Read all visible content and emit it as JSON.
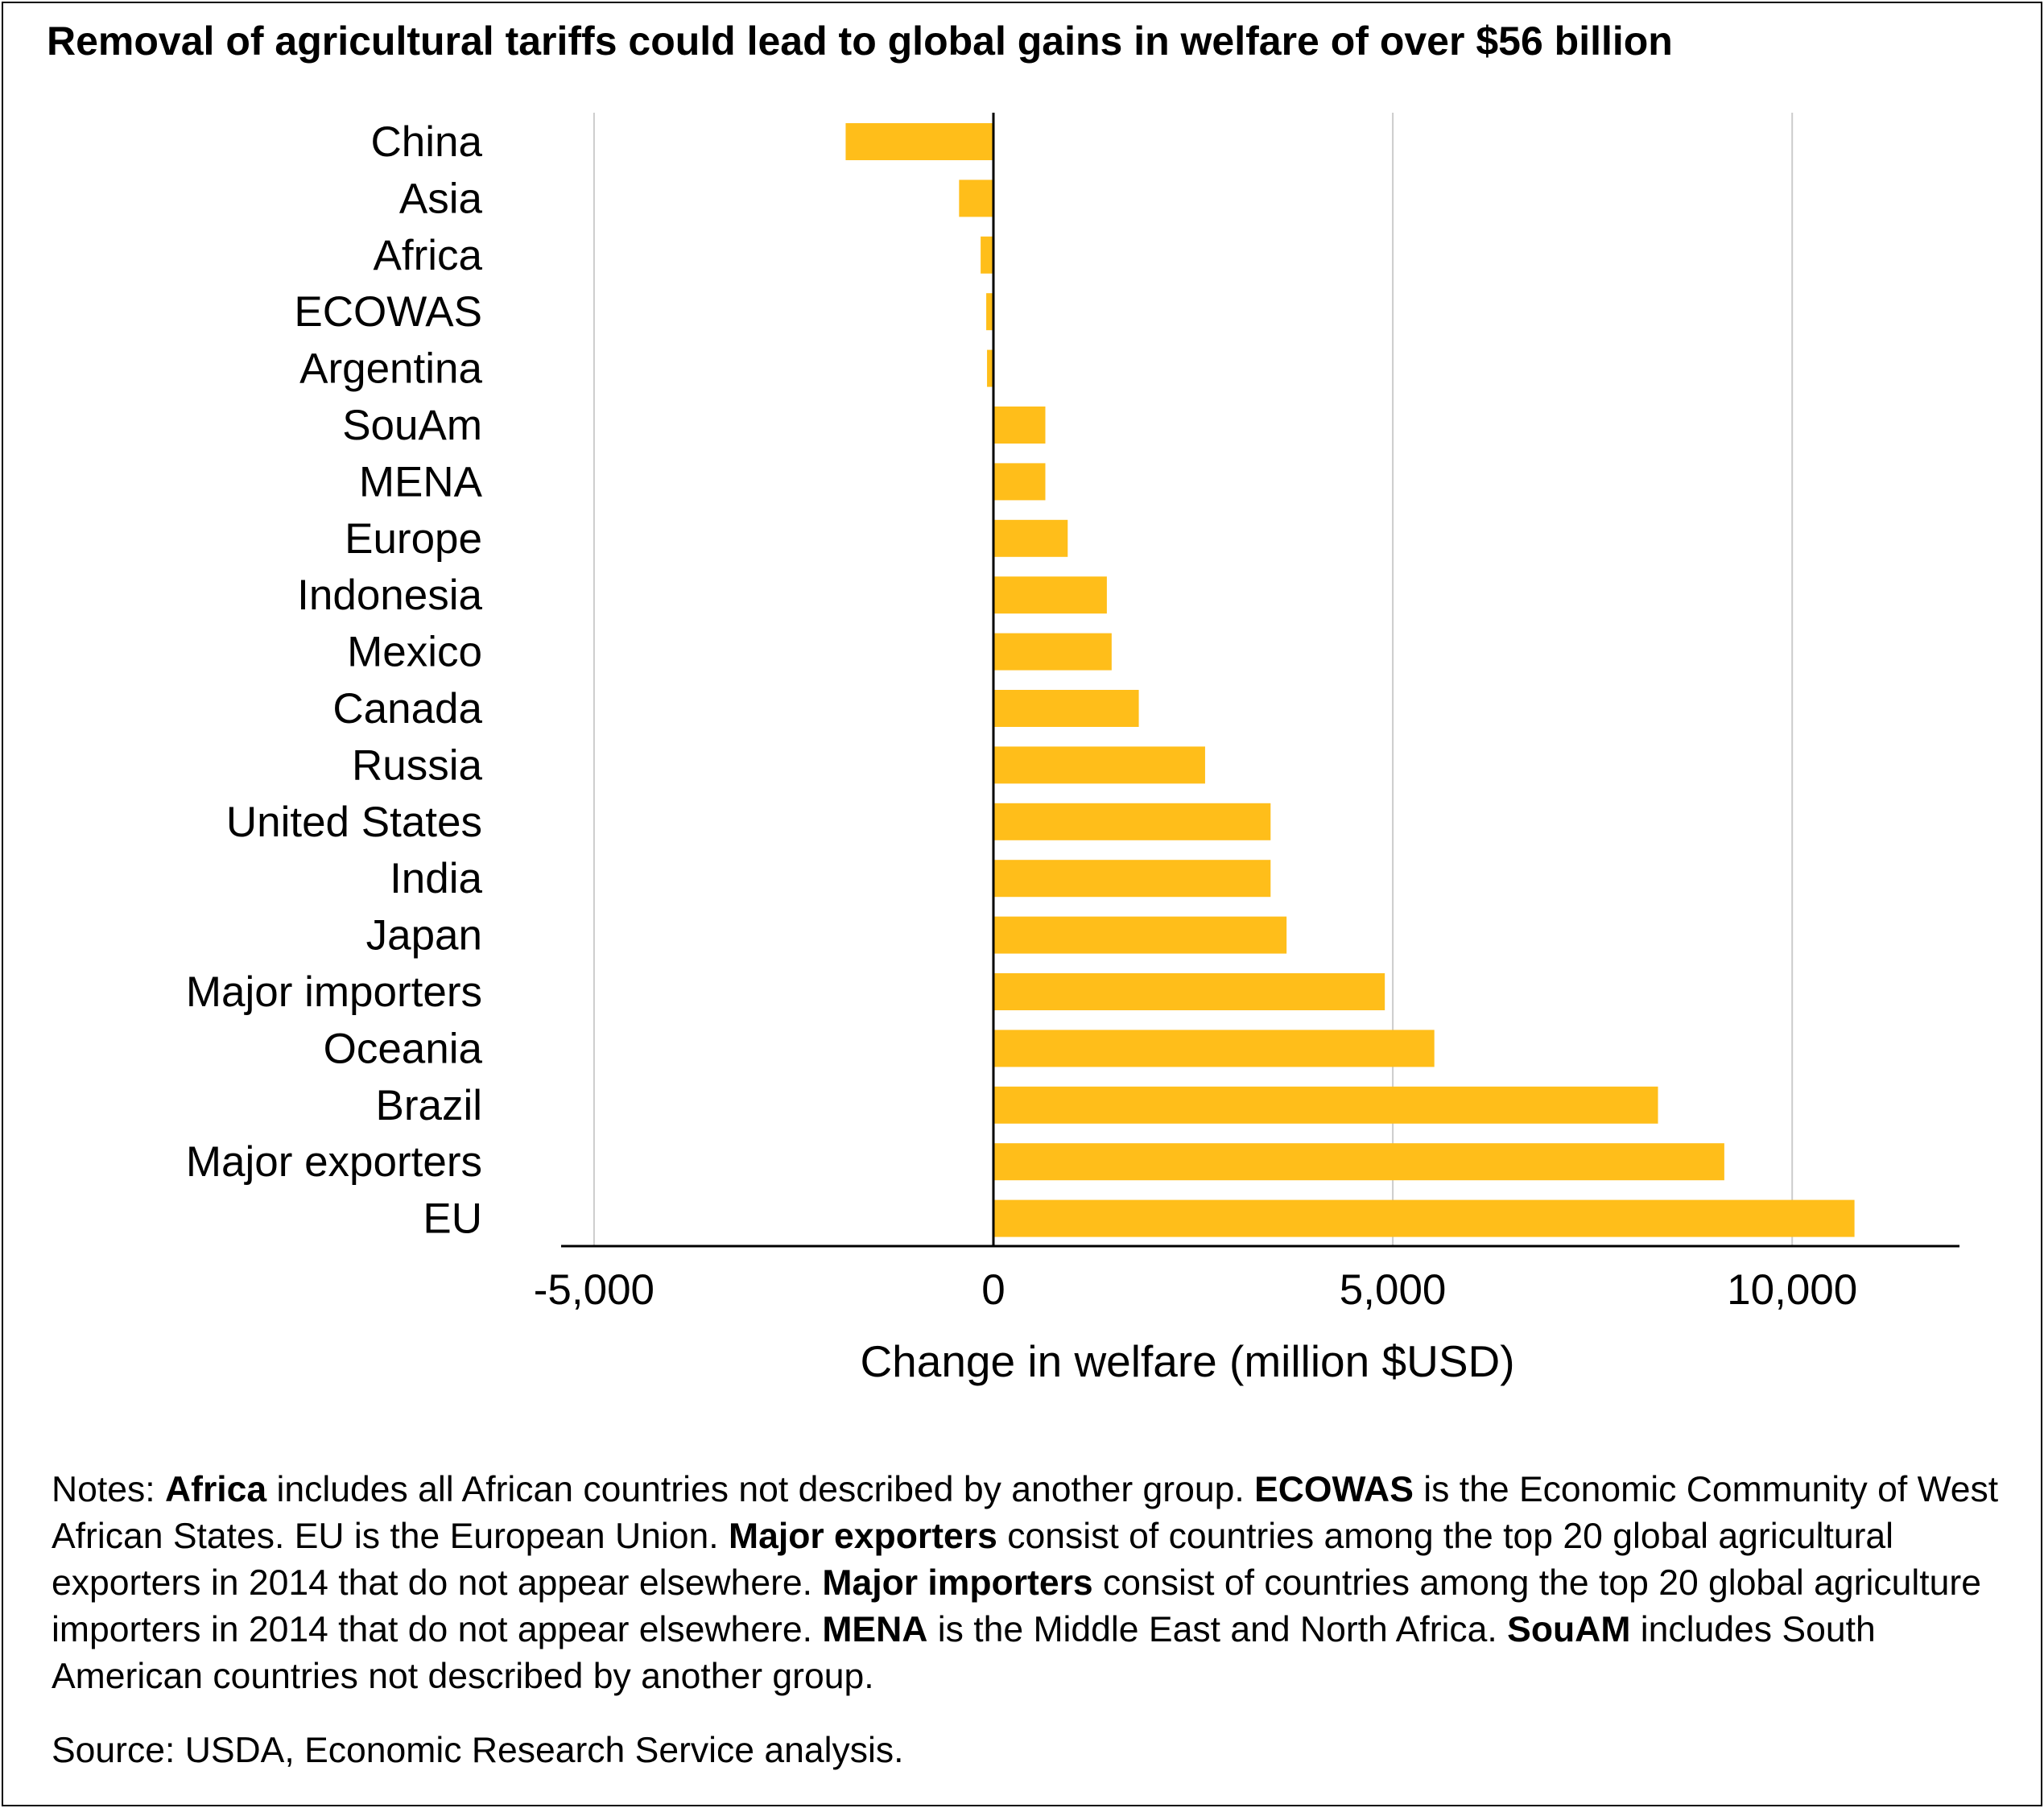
{
  "chart_data": {
    "type": "bar",
    "orientation": "horizontal",
    "title": "Removal of agricultural tariffs could lead to global gains in welfare of over $56 billion",
    "xlabel": "Change in welfare (million $USD)",
    "ylabel": "",
    "xlim": [
      -5000,
      12000
    ],
    "xticks": [
      -5000,
      0,
      5000,
      10000
    ],
    "xtick_labels": [
      "-5,000",
      "0",
      "5,000",
      "10,000"
    ],
    "grid": "vertical",
    "bar_color": "#FFBE1A",
    "categories": [
      "China",
      "Asia",
      "Africa",
      "ECOWAS",
      "Argentina",
      "SouAm",
      "MENA",
      "Europe",
      "Indonesia",
      "Mexico",
      "Canada",
      "Russia",
      "United States",
      "India",
      "Japan",
      "Major importers",
      "Oceania",
      "Brazil",
      "Major exporters",
      "EU"
    ],
    "values": [
      -1850,
      -430,
      -160,
      -90,
      -80,
      650,
      650,
      930,
      1420,
      1480,
      1820,
      2650,
      3470,
      3470,
      3670,
      4900,
      5520,
      8320,
      9150,
      10780
    ]
  },
  "notes": [
    {
      "text": "Notes: ",
      "bold": false
    },
    {
      "text": "Africa",
      "bold": true
    },
    {
      "text": " includes all African countries not described by another group. ",
      "bold": false
    },
    {
      "text": "ECOWAS",
      "bold": true
    },
    {
      "text": " is the Economic Community of West African States. EU is the European Union. ",
      "bold": false
    },
    {
      "text": "Major exporters",
      "bold": true
    },
    {
      "text": " consist of countries among the top 20 global agricultural exporters in 2014 that do not appear elsewhere. ",
      "bold": false
    },
    {
      "text": "Major importers",
      "bold": true
    },
    {
      "text": " consist of countries among the top 20 global agriculture importers in 2014 that do not appear elsewhere. ",
      "bold": false
    },
    {
      "text": "MENA",
      "bold": true
    },
    {
      "text": " is the Middle East and North Africa. ",
      "bold": false
    },
    {
      "text": "SouAM",
      "bold": true
    },
    {
      "text": " includes South American countries not described by another group.",
      "bold": false
    }
  ],
  "source": "Source: USDA, Economic Research Service analysis."
}
